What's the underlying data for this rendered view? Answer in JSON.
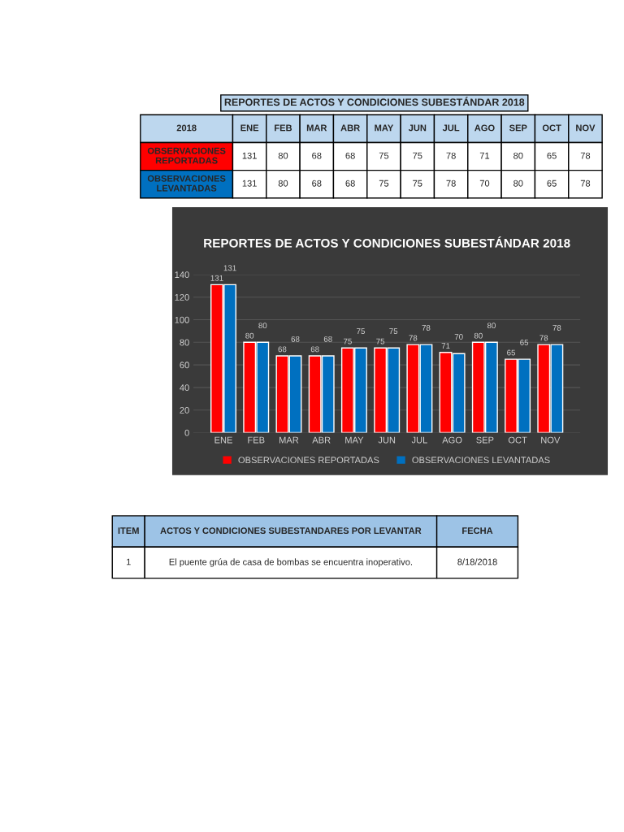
{
  "chart_data": [
    {
      "type": "other",
      "annotations": [
        "REPORTES DE ACTOS Y CONDICIONES SUBESTÁNDAR 2018",
        "2018",
        "ENE",
        "FEB",
        "MAR",
        "ABR",
        "MAY",
        "JUN",
        "JUL",
        "AGO",
        "SEP",
        "OCT",
        "NOV",
        "OBSERVACIONES REPORTADAS",
        "131",
        "80",
        "68",
        "68",
        "75",
        "75",
        "78",
        "71",
        "80",
        "65",
        "78",
        "OBSERVACIONES LEVANTADAS",
        "131",
        "80",
        "68",
        "68",
        "75",
        "75",
        "78",
        "70",
        "80",
        "65",
        "78"
      ]
    },
    {
      "type": "bar",
      "title": "REPORTES DE ACTOS Y CONDICIONES SUBESTÁNDAR 2018",
      "categories": [
        "ENE",
        "FEB",
        "MAR",
        "ABR",
        "MAY",
        "JUN",
        "JUL",
        "AGO",
        "SEP",
        "OCT",
        "NOV"
      ],
      "series": [
        {
          "name": "OBSERVACIONES REPORTADAS",
          "color": "#ff0000",
          "values": [
            131,
            80,
            68,
            68,
            75,
            75,
            78,
            71,
            80,
            65,
            78
          ]
        },
        {
          "name": "OBSERVACIONES LEVANTADAS",
          "color": "#0070c0",
          "values": [
            131,
            80,
            68,
            68,
            75,
            75,
            78,
            70,
            80,
            65,
            78
          ]
        }
      ],
      "ylim": [
        0,
        140
      ],
      "yticks": [
        0,
        20,
        40,
        60,
        80,
        100,
        120,
        140
      ],
      "grid": "y",
      "legend": "bottom",
      "data_labels": true
    },
    {
      "type": "other",
      "annotations": [
        "ITEM",
        "ACTOS Y CONDICIONES SUBESTANDARES POR LEVANTAR",
        "FECHA",
        "1",
        "El puente grúa de casa de bombas se encuentra inoperativo.",
        "8/18/2018"
      ]
    }
  ]
}
